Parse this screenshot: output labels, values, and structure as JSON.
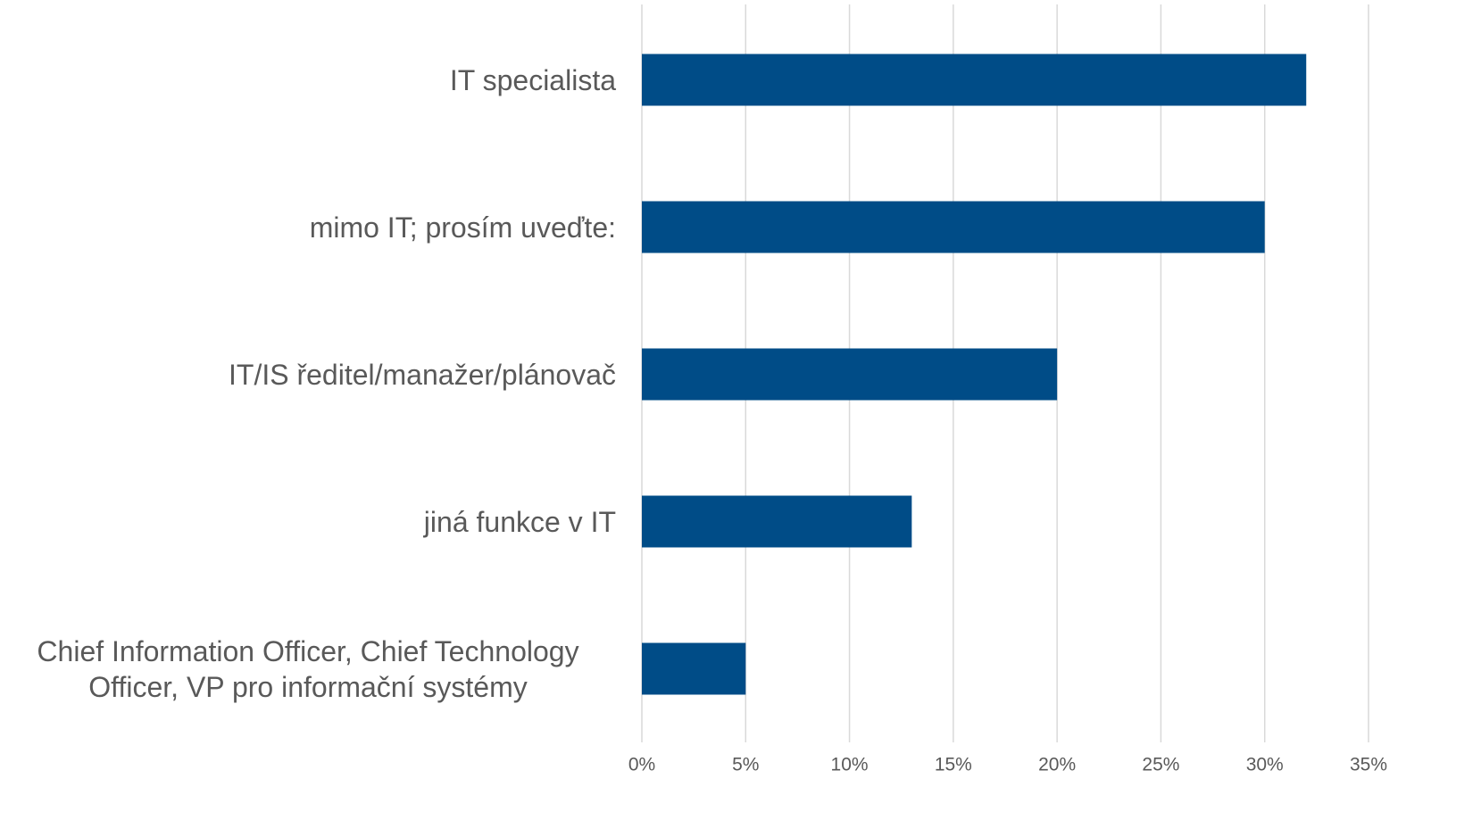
{
  "chart_data": {
    "type": "bar",
    "orientation": "horizontal",
    "categories": [
      "IT specialista",
      "mimo IT; prosím uveďte:",
      "IT/IS ředitel/manažer/plánovač",
      "jiná funkce v IT",
      "Chief Information Officer, Chief Technology Officer, VP pro informační systémy"
    ],
    "values": [
      32,
      30,
      20,
      13,
      5
    ],
    "color": "#004c87",
    "xlim": [
      0,
      35
    ],
    "xticks": [
      {
        "value": 0,
        "label": "0%"
      },
      {
        "value": 5,
        "label": "5%"
      },
      {
        "value": 10,
        "label": "10%"
      },
      {
        "value": 15,
        "label": "15%"
      },
      {
        "value": 20,
        "label": "20%"
      },
      {
        "value": 25,
        "label": "25%"
      },
      {
        "value": 30,
        "label": "30%"
      },
      {
        "value": 35,
        "label": "35%"
      }
    ],
    "grid": true
  }
}
